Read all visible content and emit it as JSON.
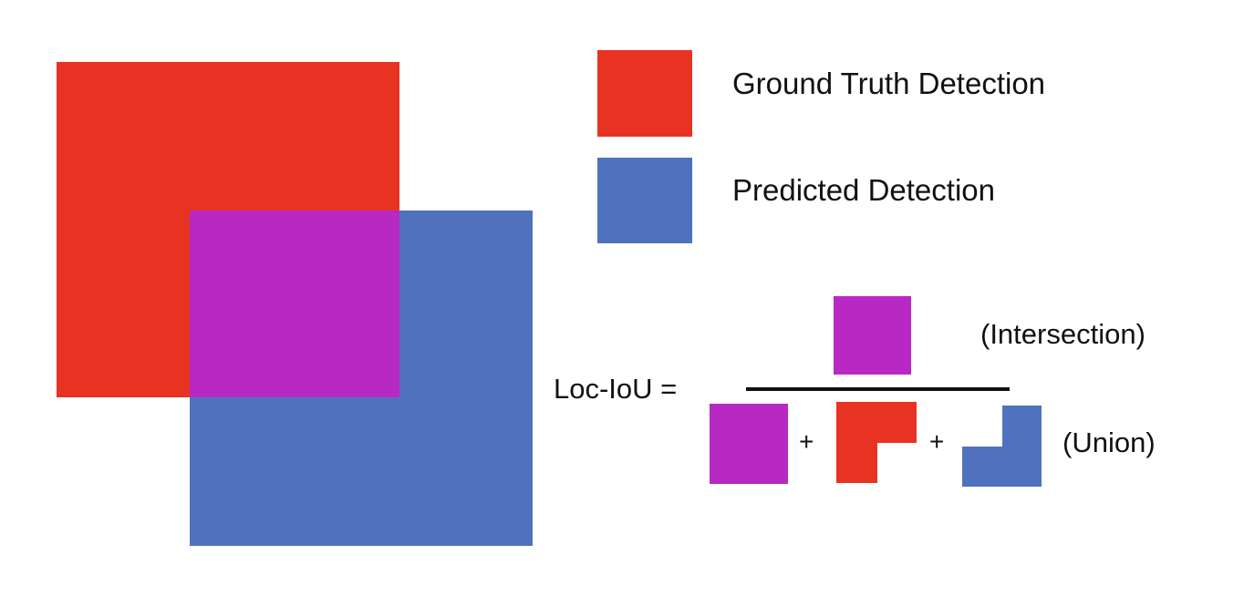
{
  "colors": {
    "ground_truth": "#E83323",
    "predicted": "#5072BE",
    "intersection": "#B828C3",
    "text": "#111111",
    "background": "#FFFFFF"
  },
  "legend": {
    "ground_truth_label": "Ground Truth Detection",
    "predicted_label": "Predicted Detection"
  },
  "formula": {
    "lhs": "Loc-IoU =",
    "numerator_note": "(Intersection)",
    "denominator_note": "(Union)",
    "plus": "+"
  }
}
